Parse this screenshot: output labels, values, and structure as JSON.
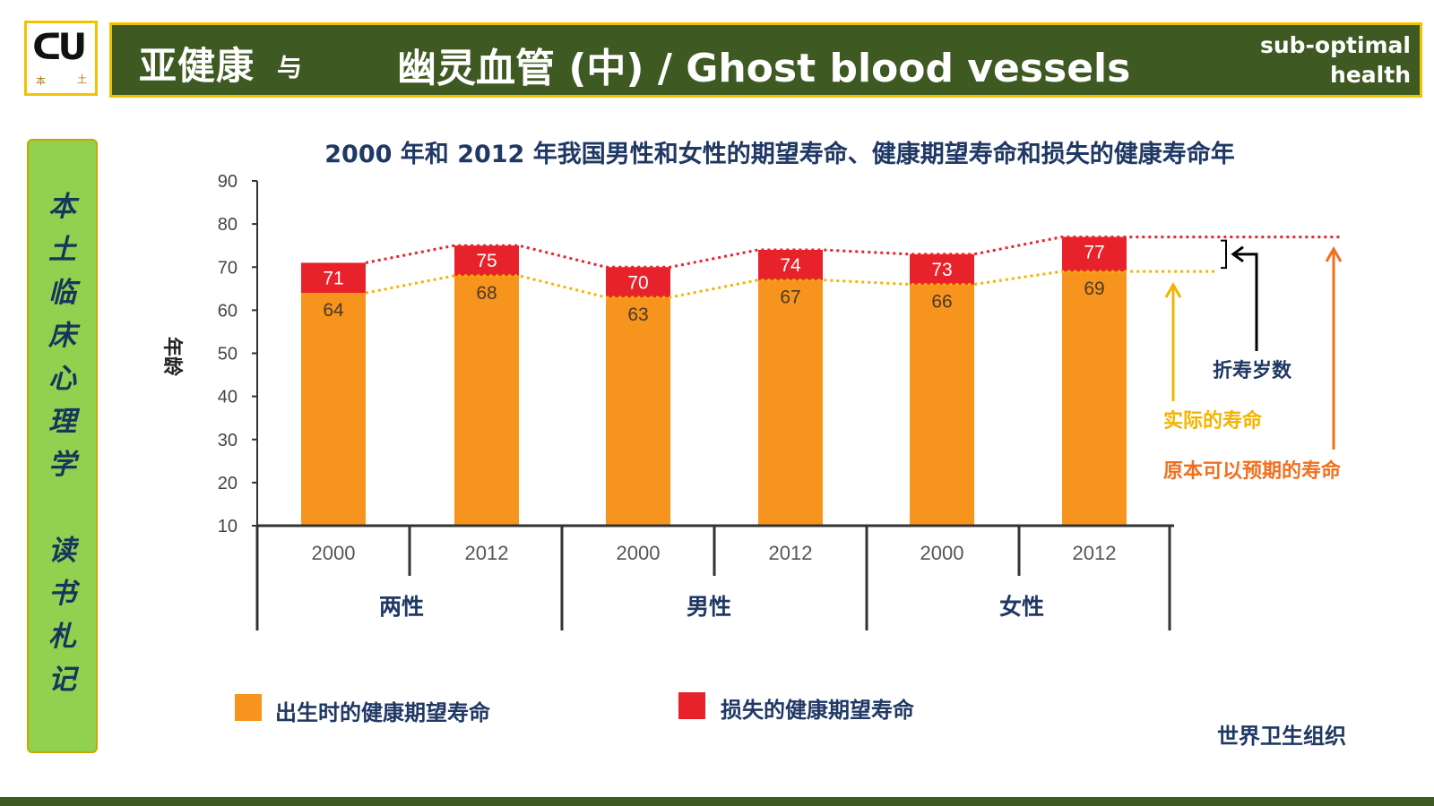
{
  "header": {
    "title_cn": "亚健康",
    "title_yu": "与",
    "title_main": "幽灵血管 (中) / Ghost blood vessels",
    "subtitle_line1": "sub-optimal",
    "subtitle_line2": "health"
  },
  "logo": {
    "glyph": "ᑕᑌ",
    "small_left": "本",
    "small_right": "土"
  },
  "sidebar": {
    "chars_top": [
      "本",
      "土",
      "临",
      "床",
      "心",
      "理",
      "学"
    ],
    "chars_bottom": [
      "读",
      "书",
      "札",
      "记"
    ]
  },
  "colors": {
    "header_bg": "#3e5a22",
    "border_gold": "#f2c200",
    "sidebar_bg": "#92d050",
    "healthy": "#f7941d",
    "lost": "#e8222a",
    "navy": "#1f3864",
    "actual": "#f2b400",
    "expected": "#f07020"
  },
  "chart_data": {
    "type": "bar",
    "title": "2000 年和 2012 年我国男性和女性的期望寿命、健康期望寿命和损失的健康寿命年",
    "ylabel": "年龄",
    "ylim": [
      10,
      90
    ],
    "yticks": [
      10,
      20,
      30,
      40,
      50,
      60,
      70,
      80,
      90
    ],
    "groups": [
      "两性",
      "男性",
      "女性"
    ],
    "categories": [
      "2000",
      "2012",
      "2000",
      "2012",
      "2000",
      "2012"
    ],
    "series": [
      {
        "name": "出生时的健康期望寿命",
        "values": [
          64,
          68,
          63,
          67,
          66,
          69
        ]
      },
      {
        "name": "损失的健康期望寿命",
        "totals": [
          71,
          75,
          70,
          74,
          73,
          77
        ]
      }
    ],
    "legend": [
      "出生时的健康期望寿命",
      "损失的健康期望寿命"
    ]
  },
  "annotations": {
    "lost_years": "折寿岁数",
    "actual_life": "实际的寿命",
    "expected_life": "原本可以预期的寿命"
  },
  "source": "世界卫生组织"
}
